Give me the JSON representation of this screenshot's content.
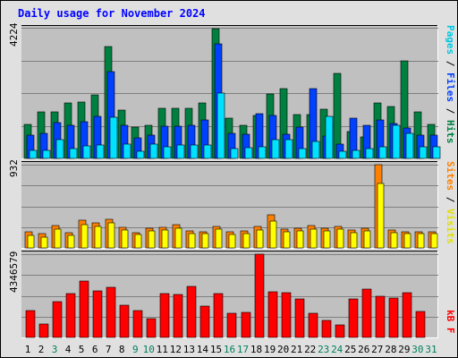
{
  "chart_data": [
    {
      "type": "bar",
      "title": "Daily usage for November 2024",
      "categories": [
        "1",
        "2",
        "3",
        "4",
        "5",
        "6",
        "7",
        "8",
        "9",
        "10",
        "11",
        "12",
        "13",
        "14",
        "15",
        "16",
        "17",
        "18",
        "19",
        "20",
        "21",
        "22",
        "23",
        "24",
        "25",
        "26",
        "27",
        "28",
        "29",
        "30",
        "31"
      ],
      "weekend_days": [
        "3",
        "9",
        "10",
        "16",
        "17",
        "23",
        "24",
        "30",
        "31"
      ],
      "y_max_label": "4224",
      "ylim": [
        0,
        4224
      ],
      "legend": [
        "Pages",
        "Files",
        "Hits"
      ],
      "series": [
        {
          "name": "Hits",
          "color": "#008040",
          "values": [
            1100,
            1500,
            1500,
            1790,
            1810,
            2060,
            3610,
            1570,
            1010,
            1080,
            1620,
            1620,
            1630,
            1800,
            4190,
            1300,
            1080,
            1380,
            2080,
            2260,
            1420,
            1420,
            1580,
            2760,
            870,
            690,
            1800,
            1690,
            3140,
            1490,
            1110
          ]
        },
        {
          "name": "Files",
          "color": "#0040ff",
          "values": [
            740,
            820,
            1170,
            1060,
            1180,
            1350,
            2820,
            1070,
            660,
            750,
            1030,
            1030,
            1080,
            1230,
            3700,
            810,
            780,
            1440,
            1400,
            790,
            1000,
            2260,
            710,
            470,
            1310,
            1070,
            1250,
            1140,
            970,
            740,
            740
          ]
        },
        {
          "name": "Pages",
          "color": "#00e0ff",
          "values": [
            260,
            270,
            610,
            330,
            410,
            440,
            1340,
            470,
            230,
            450,
            390,
            430,
            420,
            440,
            2100,
            330,
            360,
            370,
            610,
            600,
            310,
            560,
            1350,
            240,
            250,
            330,
            390,
            1060,
            800,
            380,
            380
          ]
        }
      ]
    },
    {
      "type": "bar",
      "categories": [
        "1",
        "2",
        "3",
        "4",
        "5",
        "6",
        "7",
        "8",
        "9",
        "10",
        "11",
        "12",
        "13",
        "14",
        "15",
        "16",
        "17",
        "18",
        "19",
        "20",
        "21",
        "22",
        "23",
        "24",
        "25",
        "26",
        "27",
        "28",
        "29",
        "30",
        "31"
      ],
      "y_max_label": "932",
      "ylim": [
        0,
        932
      ],
      "legend": [
        "Sites",
        "Visits"
      ],
      "series": [
        {
          "name": "Visits",
          "color": "#ff8000",
          "values": [
            180,
            160,
            250,
            170,
            310,
            280,
            320,
            230,
            170,
            220,
            230,
            260,
            190,
            180,
            240,
            180,
            190,
            240,
            370,
            210,
            220,
            250,
            220,
            240,
            200,
            220,
            932,
            200,
            180,
            180,
            180
          ]
        },
        {
          "name": "Sites",
          "color": "#ffff00",
          "values": [
            140,
            120,
            210,
            140,
            260,
            240,
            280,
            200,
            150,
            190,
            200,
            220,
            160,
            160,
            210,
            150,
            160,
            200,
            300,
            180,
            190,
            210,
            190,
            210,
            170,
            190,
            720,
            170,
            160,
            160,
            160
          ]
        }
      ]
    },
    {
      "type": "bar",
      "categories": [
        "1",
        "2",
        "3",
        "4",
        "5",
        "6",
        "7",
        "8",
        "9",
        "10",
        "11",
        "12",
        "13",
        "14",
        "15",
        "16",
        "17",
        "18",
        "19",
        "20",
        "21",
        "22",
        "23",
        "24",
        "25",
        "26",
        "27",
        "28",
        "29",
        "30",
        "31"
      ],
      "y_max_label": "4346579",
      "ylim": [
        0,
        4346579
      ],
      "legend": [
        "kB F"
      ],
      "series": [
        {
          "name": "kB F",
          "color": "#ff0000",
          "values": [
            1380000,
            680000,
            1880000,
            2310000,
            2930000,
            2430000,
            2610000,
            1680000,
            1380000,
            970000,
            2310000,
            2240000,
            2660000,
            1630000,
            2290000,
            1280000,
            1330000,
            4346579,
            2400000,
            2340000,
            1990000,
            1280000,
            880000,
            640000,
            2020000,
            2510000,
            2140000,
            2060000,
            2340000,
            1370000,
            0
          ]
        }
      ]
    }
  ],
  "colors": {
    "frame": "#e0e0e0",
    "panel": "#c0c0c0",
    "gridline": "#808080",
    "title": "#0000ff",
    "weekday_label": "#000000",
    "weekend_label": "#00805c"
  }
}
